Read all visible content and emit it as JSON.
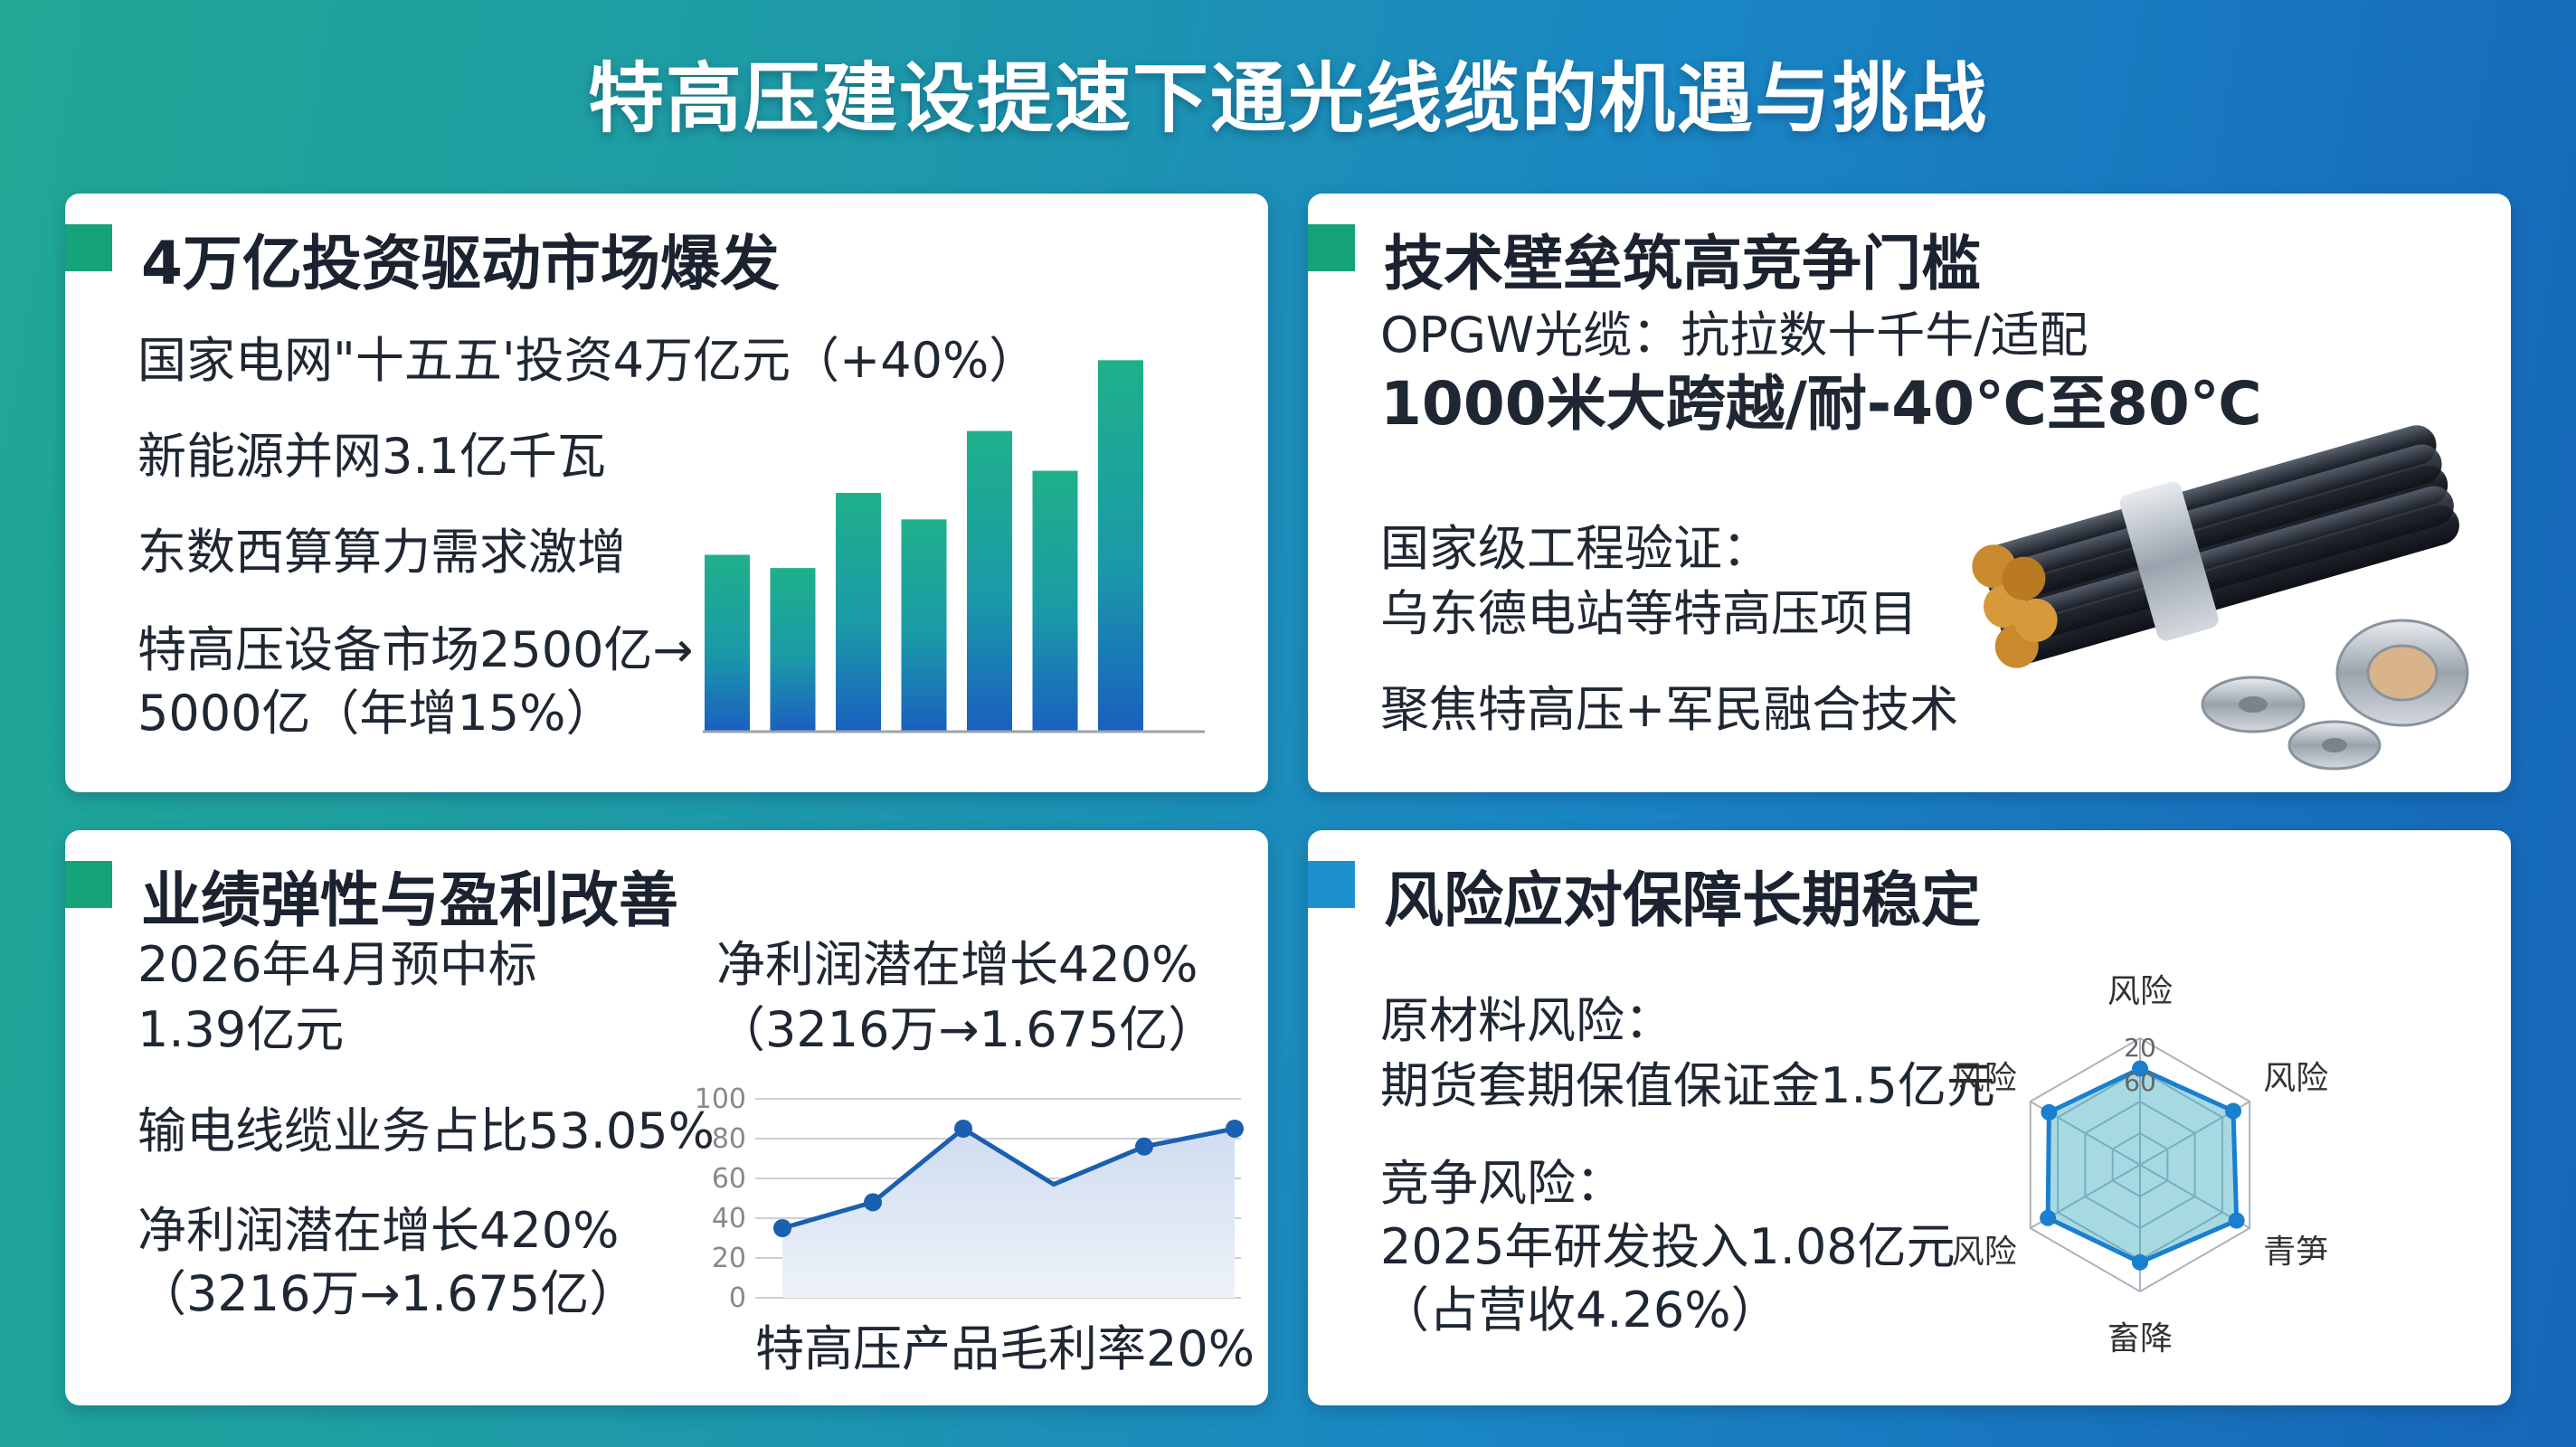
{
  "title": "特高压建设提速下通光线缆的机遇与挑战",
  "panels": {
    "investment": {
      "title": "4万亿投资驱动市场爆发",
      "lines": [
        "国家电网\"十五五'投资4万亿元（+40%）",
        "新能源并网3.1亿千瓦",
        "东数西算算力需求激增",
        "特高压设备市场2500亿→",
        "5000亿（年增15%）"
      ]
    },
    "tech": {
      "title": "技术壁垒筑高竞争门槛",
      "lines": [
        "OPGW光缆：抗拉数十千牛/适配",
        "1000米大跨越/耐-40℃至80℃",
        "国家级工程验证：",
        "乌东德电站等特高压项目",
        "聚焦特高压+军民融合技术"
      ]
    },
    "performance": {
      "title": "业绩弹性与盈利改善",
      "left_lines": [
        "2026年4月预中标",
        "1.39亿元",
        "输电线缆业务占比53.05%",
        "净利润潜在增长420%",
        "（3216万→1.675亿）"
      ],
      "right_lines": [
        "净利润潜在增长420%",
        "（3216万→1.675亿）"
      ]
    },
    "risk": {
      "title": "风险应对保障长期稳定",
      "lines": [
        "原材料风险：",
        "期货套期保值保证金1.5亿元",
        "竞争风险：",
        "2025年研发投入1.08亿元",
        "（占营收4.26%）"
      ]
    }
  },
  "chart_data": [
    {
      "type": "bar",
      "values": [
        40,
        37,
        54,
        48,
        68,
        59,
        84
      ],
      "ylim": [
        0,
        90
      ]
    },
    {
      "type": "area",
      "x": [
        1,
        2,
        3,
        4,
        5,
        6
      ],
      "values": [
        35,
        48,
        85,
        57,
        76,
        85
      ],
      "yticks": [
        "0",
        "20",
        "40",
        "60",
        "80",
        "100"
      ],
      "ylim": [
        0,
        100
      ],
      "xlabel": "特高压产品毛利率20%"
    },
    {
      "type": "radar",
      "axes": [
        "风险",
        "风险",
        "青笋",
        "畜降",
        "风险",
        "风险"
      ],
      "ticks": [
        "20",
        "60"
      ],
      "values": [
        0.76,
        0.85,
        0.88,
        0.77,
        0.84,
        0.83
      ]
    }
  ],
  "colors": {
    "accent_green": "#15a378",
    "accent_blue": "#1e8fcf",
    "line_blue": "#1a5fb0"
  }
}
